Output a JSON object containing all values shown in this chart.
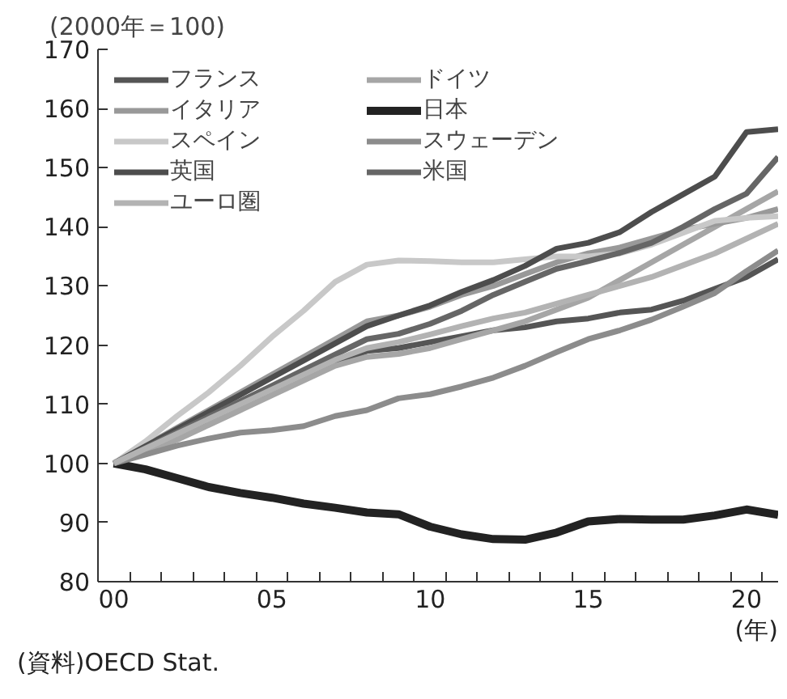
{
  "chart_data": {
    "type": "line",
    "ylabel": "(2000年＝100)",
    "xlabel": "(年)",
    "annotations": [
      "(資料)OECD Stat."
    ],
    "x": [
      2000,
      2001,
      2002,
      2003,
      2004,
      2005,
      2006,
      2007,
      2008,
      2009,
      2010,
      2011,
      2012,
      2013,
      2014,
      2015,
      2016,
      2017,
      2018,
      2019,
      2020,
      2021
    ],
    "xlim": [
      1999.5,
      2021
    ],
    "xticks": [
      {
        "value": 2000,
        "label": "00"
      },
      {
        "value": 2005,
        "label": "05"
      },
      {
        "value": 2010,
        "label": "10"
      },
      {
        "value": 2015,
        "label": "15"
      },
      {
        "value": 2020,
        "label": "20"
      },
      {
        "value": 1999.5,
        "label": null
      },
      {
        "value": 2000.5,
        "label": null
      },
      {
        "value": 2001.5,
        "label": null
      },
      {
        "value": 2002.5,
        "label": null
      },
      {
        "value": 2003.5,
        "label": null
      },
      {
        "value": 2004.5,
        "label": null
      },
      {
        "value": 2005.5,
        "label": null
      },
      {
        "value": 2006.5,
        "label": null
      },
      {
        "value": 2007.5,
        "label": null
      },
      {
        "value": 2008.5,
        "label": null
      },
      {
        "value": 2009.5,
        "label": null
      },
      {
        "value": 2010.5,
        "label": null
      },
      {
        "value": 2011.5,
        "label": null
      },
      {
        "value": 2012.5,
        "label": null
      },
      {
        "value": 2013.5,
        "label": null
      },
      {
        "value": 2014.5,
        "label": null
      },
      {
        "value": 2015.5,
        "label": null
      },
      {
        "value": 2016.5,
        "label": null
      },
      {
        "value": 2017.5,
        "label": null
      },
      {
        "value": 2018.5,
        "label": null
      },
      {
        "value": 2019.5,
        "label": null
      },
      {
        "value": 2020.5,
        "label": null
      }
    ],
    "ylim": [
      80,
      170
    ],
    "yticks": [
      80,
      90,
      100,
      110,
      120,
      130,
      140,
      150,
      160,
      170
    ],
    "grid": false,
    "legend": "top left",
    "marker": "none",
    "line_style": "solid",
    "series": [
      {
        "name": "フランス",
        "color": "#555555",
        "values": [
          100,
          102.3,
          104.6,
          107,
          109.5,
          112,
          114.5,
          117,
          119,
          119.5,
          120.5,
          121.5,
          122.5,
          123,
          124,
          124.5,
          125.5,
          126,
          127.5,
          129.5,
          131.5,
          134.5
        ]
      },
      {
        "name": "ドイツ",
        "color": "#a6a6a6",
        "values": [
          100,
          102,
          104,
          106.5,
          109,
          111.5,
          114,
          116.5,
          118,
          118.5,
          119.5,
          121,
          122.5,
          124,
          126,
          128,
          131,
          134,
          137,
          140,
          143,
          146
        ]
      },
      {
        "name": "イタリア",
        "color": "#999999",
        "values": [
          100,
          103,
          106,
          109,
          112,
          115,
          118,
          121,
          124,
          125,
          126.5,
          128.5,
          130,
          132,
          134,
          135.5,
          136.5,
          138,
          139.5,
          140.5,
          141.5,
          143
        ]
      },
      {
        "name": "日本",
        "color": "#222222",
        "values": [
          100,
          99,
          97.5,
          96,
          95,
          94.2,
          93.2,
          92.5,
          91.7,
          91.4,
          89.3,
          88,
          87.2,
          87.1,
          88.3,
          90.2,
          90.6,
          90.5,
          90.5,
          91.2,
          92.2,
          91.3
        ]
      },
      {
        "name": "スペイン",
        "color": "#c8c8c8",
        "values": [
          100,
          103.7,
          108,
          112,
          116.5,
          121.4,
          125.8,
          130.7,
          133.6,
          134.3,
          134.2,
          134,
          134,
          134.5,
          135,
          135,
          135.5,
          137,
          139,
          141,
          141.5,
          141.8
        ]
      },
      {
        "name": "スウェーデン",
        "color": "#8c8c8c",
        "values": [
          100,
          101.5,
          103,
          104.2,
          105.2,
          105.6,
          106.3,
          108,
          109,
          111,
          111.7,
          113,
          114.5,
          116.5,
          118.8,
          121,
          122.5,
          124.3,
          126.5,
          128.8,
          132.5,
          136
        ]
      },
      {
        "name": "英国",
        "color": "#4d4d4d",
        "values": [
          100,
          102.9,
          105.8,
          108.7,
          111.6,
          114.5,
          117.4,
          120.3,
          123.2,
          125,
          126.7,
          129,
          131,
          133.4,
          136.3,
          137.3,
          139.1,
          142.5,
          145.5,
          148.5,
          156,
          156.5
        ]
      },
      {
        "name": "米国",
        "color": "#666666",
        "values": [
          100,
          102.6,
          105.3,
          107.9,
          110.5,
          113.1,
          115.8,
          118.4,
          121,
          121.9,
          123.6,
          125.8,
          128.5,
          130.7,
          132.9,
          134.2,
          135.6,
          137.3,
          140,
          143,
          145.6,
          151.8
        ]
      },
      {
        "name": "ユーロ圏",
        "color": "#b3b3b3",
        "values": [
          100,
          102.5,
          105,
          107.5,
          110,
          112.5,
          115,
          117.5,
          119.5,
          120.5,
          121.8,
          123.2,
          124.5,
          125.5,
          127,
          128.5,
          130,
          131.5,
          133.5,
          135.5,
          138,
          140.5
        ]
      }
    ]
  }
}
